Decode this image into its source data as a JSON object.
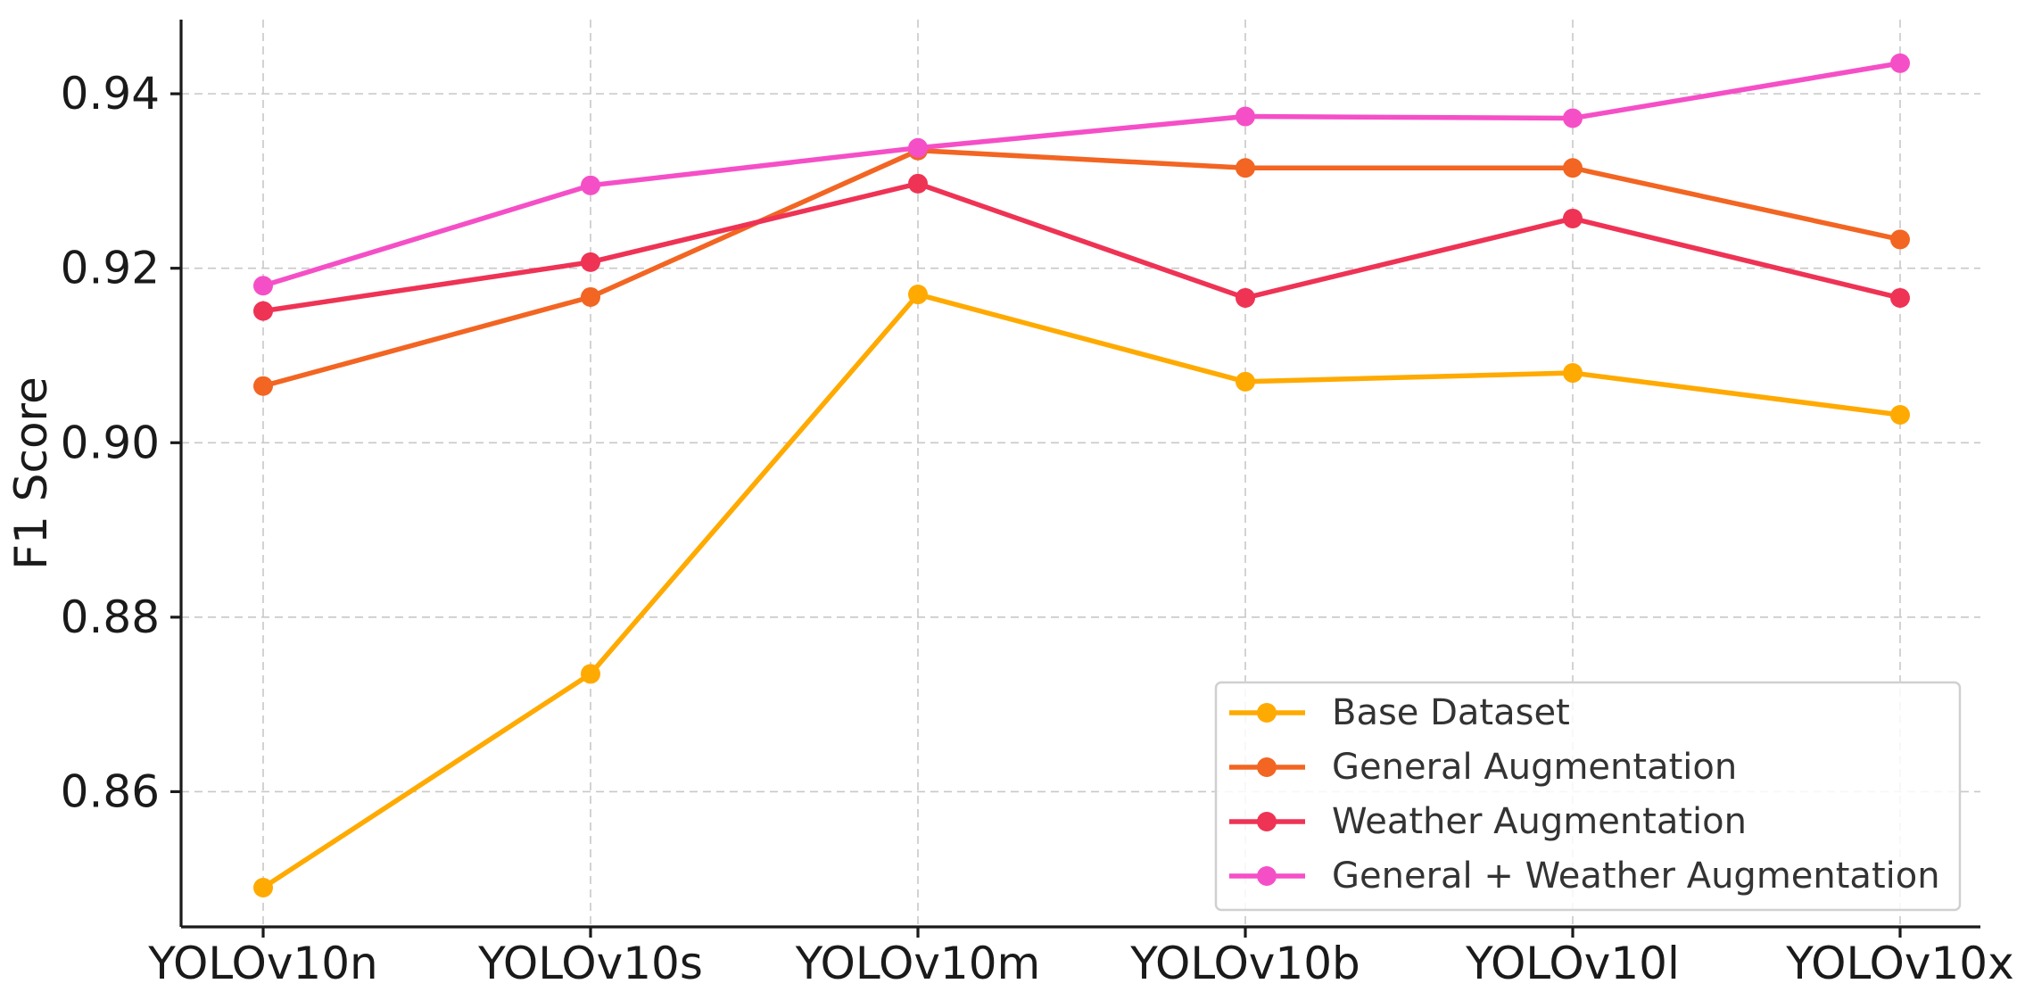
{
  "chart_data": {
    "type": "line",
    "title": "",
    "xlabel": "",
    "ylabel": "F1 Score",
    "categories": [
      "YOLOv10n",
      "YOLOv10s",
      "YOLOv10m",
      "YOLOv10b",
      "YOLOv10l",
      "YOLOv10x"
    ],
    "ylim": [
      0.8445,
      0.9485
    ],
    "yticks": [
      0.86,
      0.88,
      0.9,
      0.92,
      0.94
    ],
    "ytick_labels": [
      "0.86",
      "0.88",
      "0.90",
      "0.92",
      "0.94"
    ],
    "grid": true,
    "legend_position": "bottom-right",
    "series": [
      {
        "name": "Base Dataset",
        "color": "#FFAA00",
        "values": [
          0.849,
          0.8735,
          0.917,
          0.907,
          0.908,
          0.9032
        ]
      },
      {
        "name": "General Augmentation",
        "color": "#F26522",
        "values": [
          0.9065,
          0.9167,
          0.9335,
          0.9315,
          0.9315,
          0.9233
        ]
      },
      {
        "name": "Weather Augmentation",
        "color": "#EE3355",
        "values": [
          0.9151,
          0.9207,
          0.9297,
          0.9166,
          0.9257,
          0.9166
        ]
      },
      {
        "name": "General + Weather Augmentation",
        "color": "#F54FC7",
        "values": [
          0.918,
          0.9295,
          0.9338,
          0.9374,
          0.9372,
          0.9435
        ]
      }
    ]
  }
}
